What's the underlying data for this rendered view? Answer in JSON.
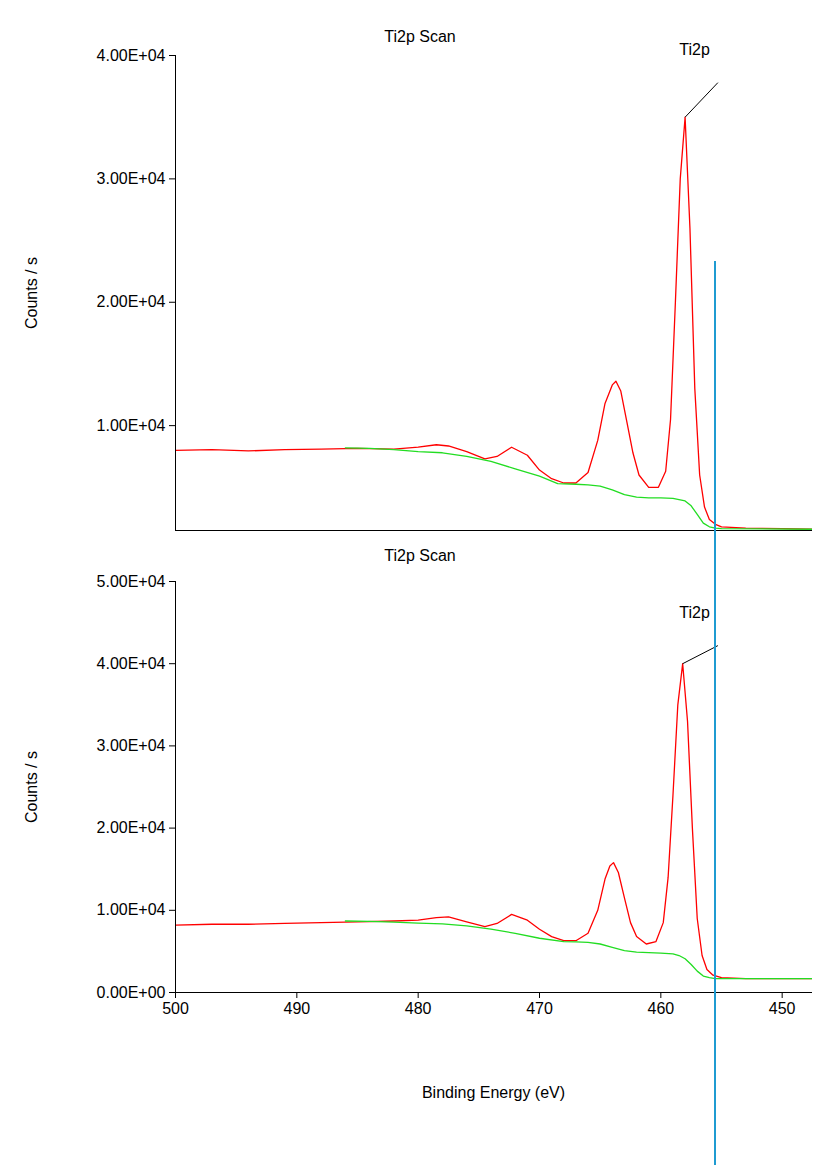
{
  "chart_data": [
    {
      "type": "line",
      "title": "Ti2p Scan",
      "y_label": "Counts / s",
      "tick_labels": "y",
      "xlim": [
        500,
        447.5
      ],
      "ylim": [
        1500,
        40000
      ],
      "yticks": [
        {
          "value": 10000,
          "label": "1.00E+04"
        },
        {
          "value": 20000,
          "label": "2.00E+04"
        },
        {
          "value": 30000,
          "label": "3.00E+04"
        },
        {
          "value": 40000,
          "label": "4.00E+04"
        }
      ],
      "series": [
        {
          "color": "#ff0000",
          "x": [
            500,
            497,
            494,
            491,
            488,
            485,
            482,
            480,
            478.5,
            477.5,
            476,
            474.5,
            473.5,
            472.3,
            471,
            470,
            469,
            468,
            467,
            466,
            465.2,
            464.6,
            464,
            463.7,
            463.3,
            462.8,
            462.3,
            461.8,
            461,
            460.2,
            459.6,
            459.2,
            458.8,
            458.4,
            458.0,
            457.6,
            457.2,
            456.8,
            456.4,
            456,
            455.5,
            455,
            453,
            450,
            447.5
          ],
          "values": [
            8000,
            8050,
            7950,
            8050,
            8100,
            8150,
            8100,
            8250,
            8450,
            8350,
            7900,
            7300,
            7500,
            8250,
            7600,
            6400,
            5700,
            5350,
            5350,
            6200,
            8800,
            11800,
            13300,
            13600,
            12800,
            10300,
            7800,
            6000,
            5000,
            5000,
            6300,
            10500,
            20000,
            30000,
            35000,
            26000,
            13000,
            6000,
            3400,
            2400,
            2000,
            1800,
            1700,
            1650,
            1600
          ]
        },
        {
          "color": "#22dd22",
          "x": [
            486,
            484,
            482,
            480,
            478,
            476,
            474,
            472,
            470,
            468.5,
            467,
            466,
            465,
            464,
            463,
            462,
            461,
            460,
            459,
            458,
            457.5,
            457,
            456.5,
            456,
            455.5,
            455,
            447.5
          ],
          "values": [
            8200,
            8150,
            8050,
            7900,
            7800,
            7500,
            7100,
            6500,
            5900,
            5300,
            5250,
            5200,
            5100,
            4800,
            4400,
            4200,
            4150,
            4150,
            4100,
            3900,
            3500,
            2800,
            2100,
            1800,
            1700,
            1650,
            1600
          ]
        }
      ],
      "annotations": [
        {
          "text": "Ti2p",
          "x": 458.0,
          "y": 35000,
          "x_end": 455.3,
          "y_end": 37800
        }
      ],
      "vline": {
        "x": 455.5,
        "y": 23300,
        "color": "#1f9bd1"
      }
    },
    {
      "type": "line",
      "title": "Ti2p Scan",
      "y_label": "Counts / s",
      "x_label": "Binding Energy (eV)",
      "xlim": [
        500,
        447.5
      ],
      "ylim": [
        0,
        50000
      ],
      "xticks": [
        500,
        490,
        480,
        470,
        460,
        450
      ],
      "yticks": [
        {
          "value": 0,
          "label": "0.00E+00"
        },
        {
          "value": 10000,
          "label": "1.00E+04"
        },
        {
          "value": 20000,
          "label": "2.00E+04"
        },
        {
          "value": 30000,
          "label": "3.00E+04"
        },
        {
          "value": 40000,
          "label": "4.00E+04"
        },
        {
          "value": 50000,
          "label": "5.00E+04"
        }
      ],
      "series": [
        {
          "color": "#ff0000",
          "x": [
            500,
            497,
            494,
            491,
            488,
            485,
            482,
            480,
            478.5,
            477.5,
            476,
            474.5,
            473.5,
            472.3,
            471,
            470,
            469,
            468,
            467,
            466,
            465.2,
            464.6,
            464.2,
            463.9,
            463.5,
            463,
            462.5,
            462,
            461.2,
            460.4,
            459.8,
            459.4,
            459,
            458.6,
            458.2,
            457.8,
            457.4,
            457,
            456.6,
            456.2,
            455.7,
            455,
            453,
            450,
            447.5
          ],
          "values": [
            8200,
            8300,
            8300,
            8400,
            8500,
            8600,
            8700,
            8800,
            9100,
            9200,
            8600,
            8000,
            8400,
            9500,
            8800,
            7700,
            6800,
            6300,
            6300,
            7200,
            10000,
            13800,
            15400,
            15800,
            14600,
            11500,
            8500,
            6800,
            5900,
            6200,
            8500,
            14000,
            24000,
            35000,
            40000,
            33000,
            20000,
            9000,
            4500,
            2800,
            2100,
            1800,
            1700,
            1700,
            1700
          ]
        },
        {
          "color": "#22dd22",
          "x": [
            486,
            484,
            482,
            480,
            478,
            476,
            474,
            472,
            470,
            468,
            467,
            466,
            465,
            464,
            463,
            462,
            461,
            460,
            459,
            458.5,
            458,
            457.5,
            457,
            456.5,
            456,
            455.5,
            455,
            447.5
          ],
          "values": [
            8700,
            8650,
            8550,
            8450,
            8350,
            8100,
            7700,
            7200,
            6600,
            6200,
            6150,
            6100,
            5900,
            5500,
            5100,
            4900,
            4850,
            4800,
            4700,
            4500,
            4100,
            3400,
            2600,
            2000,
            1800,
            1700,
            1700,
            1700
          ]
        }
      ],
      "annotations": [
        {
          "text": "Ti2p",
          "x": 458.2,
          "y": 40000,
          "x_end": 455.3,
          "y_end": 42200
        }
      ]
    }
  ]
}
